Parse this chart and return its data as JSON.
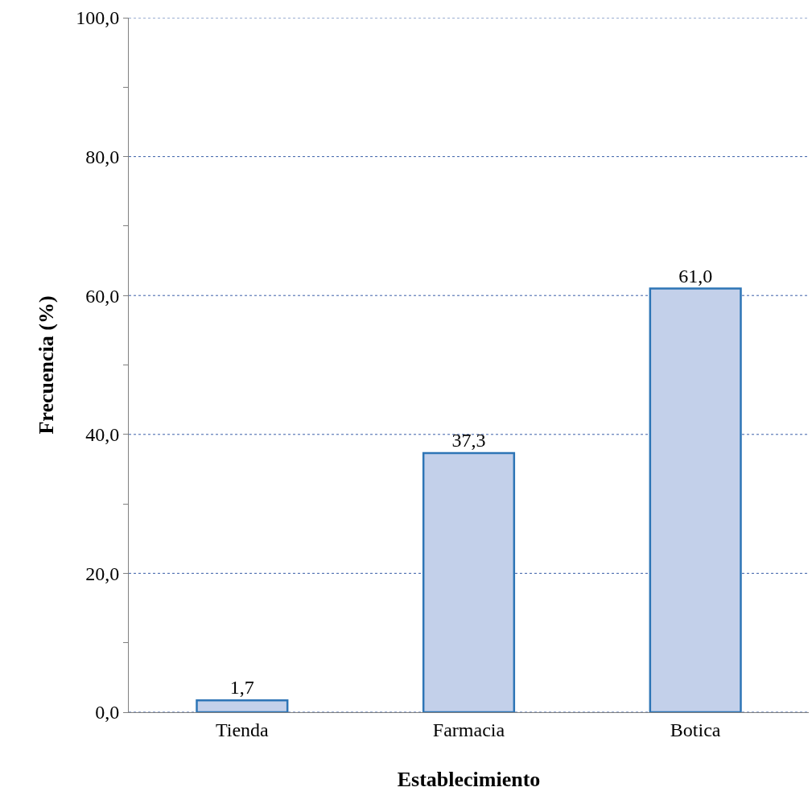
{
  "chart_data": {
    "type": "bar",
    "xlabel": "Establecimiento",
    "ylabel": "Frecuencia (%)",
    "categories": [
      "Tienda",
      "Farmacia",
      "Botica"
    ],
    "values": [
      1.7,
      37.3,
      61.0
    ],
    "value_labels": [
      "1,7",
      "37,3",
      "61,0"
    ],
    "color": "#c3d0ea",
    "ylim": [
      0,
      100
    ],
    "yticks": [
      {
        "value": 0,
        "label": "0,0"
      },
      {
        "value": 10,
        "label": null
      },
      {
        "value": 20,
        "label": "20,0"
      },
      {
        "value": 30,
        "label": null
      },
      {
        "value": 40,
        "label": "40,0"
      },
      {
        "value": 50,
        "label": null
      },
      {
        "value": 60,
        "label": "60,0"
      },
      {
        "value": 70,
        "label": null
      },
      {
        "value": 80,
        "label": "80,0"
      },
      {
        "value": 90,
        "label": null
      },
      {
        "value": 100,
        "label": "100,0"
      }
    ],
    "grid": "y"
  }
}
